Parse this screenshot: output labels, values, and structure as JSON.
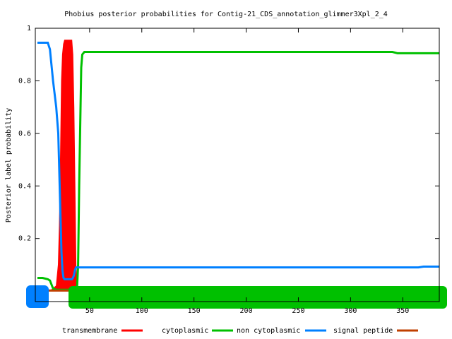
{
  "chart_data": {
    "type": "line",
    "title": "Phobius posterior probabilities for Contig-21_CDS_annotation_glimmer3Xpl_2_4",
    "ylabel": "Posterior label probability",
    "x": [
      0,
      5,
      10,
      12,
      15,
      18,
      20,
      21,
      22,
      23,
      24,
      25,
      26,
      30,
      33,
      34,
      35,
      36,
      37,
      38,
      39,
      40,
      42,
      43,
      45,
      50,
      100,
      200,
      300,
      340,
      345,
      365,
      370,
      385
    ],
    "series": [
      {
        "name": "transmembrane",
        "color": "#ff0000",
        "fill": true,
        "values": [
          0,
          0,
          0,
          0,
          0.01,
          0.02,
          0.1,
          0.25,
          0.5,
          0.8,
          0.9,
          0.94,
          0.955,
          0.955,
          0.955,
          0.9,
          0.7,
          0.4,
          0.1,
          0.01,
          0.003,
          0.003,
          0.003,
          0.003,
          0.003,
          0.003,
          0.003,
          0.003,
          0.003,
          0.003,
          0.003,
          0.003,
          0.003,
          0.003
        ]
      },
      {
        "name": "cytoplasmic",
        "color": "#00c000",
        "values": [
          0.05,
          0.05,
          0.045,
          0.04,
          0.01,
          0.005,
          0.005,
          0.005,
          0.005,
          0.005,
          0.005,
          0.005,
          0.005,
          0.005,
          0.005,
          0.005,
          0.005,
          0.005,
          0.005,
          0.01,
          0.1,
          0.4,
          0.85,
          0.9,
          0.91,
          0.91,
          0.91,
          0.91,
          0.91,
          0.91,
          0.905,
          0.905,
          0.905,
          0.905
        ]
      },
      {
        "name": "non cytoplasmic",
        "color": "#0080ff",
        "values": [
          0.945,
          0.945,
          0.945,
          0.92,
          0.8,
          0.7,
          0.6,
          0.45,
          0.3,
          0.15,
          0.08,
          0.05,
          0.045,
          0.045,
          0.045,
          0.05,
          0.06,
          0.08,
          0.09,
          0.09,
          0.09,
          0.09,
          0.09,
          0.09,
          0.09,
          0.09,
          0.09,
          0.09,
          0.09,
          0.09,
          0.09,
          0.09,
          0.093,
          0.093
        ]
      },
      {
        "name": "signal peptide",
        "color": "#c04000",
        "values": [
          0.002,
          0.002,
          0.002,
          0.002,
          0.002,
          0.002,
          0.002,
          0.002,
          0.002,
          0.002,
          0.002,
          0.002,
          0.002,
          0.002,
          0.002,
          0.002,
          0.002,
          0.002,
          0.002,
          0.002,
          0.002,
          0.002,
          0.002,
          0.002,
          0.002,
          0.002,
          0.002,
          0.002,
          0.002,
          0.002,
          0.002,
          0.002,
          0.002,
          0.002
        ]
      }
    ],
    "xlim": [
      -2,
      385
    ],
    "ylim": [
      -0.04,
      1
    ],
    "xticks": [
      50,
      100,
      150,
      200,
      250,
      300,
      350
    ],
    "yticks": [
      0.2,
      0.4,
      0.6,
      0.8,
      1
    ],
    "grid": false,
    "legend": "bottom"
  }
}
